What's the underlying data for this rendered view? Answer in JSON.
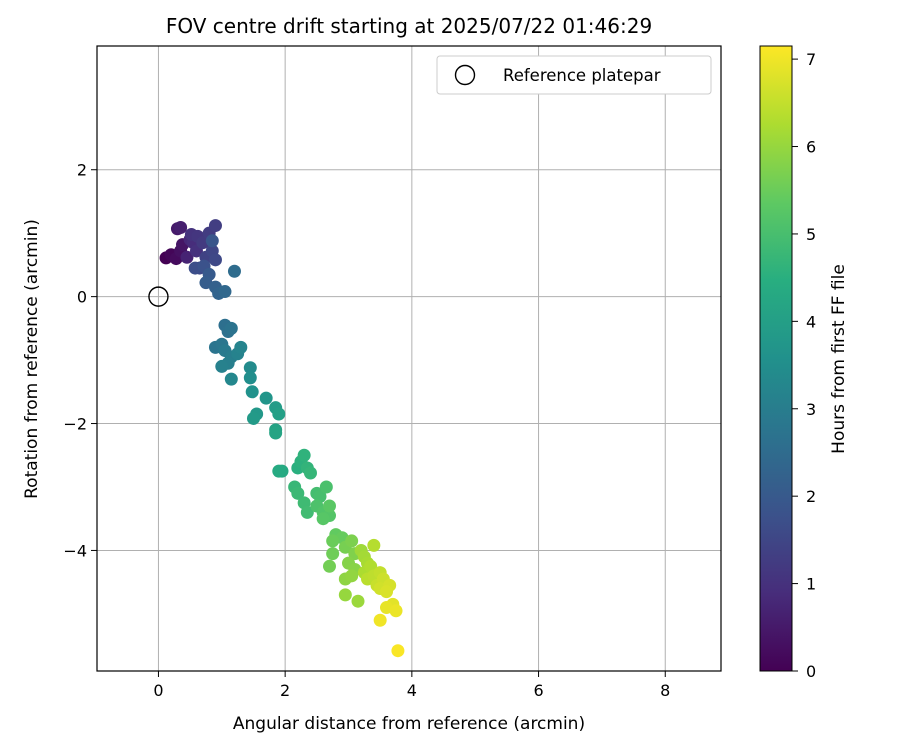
{
  "chart_data": {
    "type": "scatter",
    "title": "FOV centre drift starting at 2025/07/22 01:46:29",
    "xlabel": "Angular distance from reference (arcmin)",
    "ylabel": "Rotation from reference (arcmin)",
    "xlim": [
      -0.97,
      8.88
    ],
    "ylim": [
      -5.9,
      3.95
    ],
    "xticks": [
      0,
      2,
      4,
      6,
      8
    ],
    "yticks": [
      2,
      0,
      -2,
      -4
    ],
    "grid": true,
    "legend": {
      "placement": "top-right",
      "entries": [
        "Reference platepar"
      ]
    },
    "reference_point": {
      "x": 0,
      "y": 0
    },
    "colorbar": {
      "label": "Hours from first FF file",
      "colormap": "viridis",
      "range": [
        0,
        7.15
      ],
      "ticks": [
        0,
        1,
        2,
        3,
        4,
        5,
        6,
        7
      ]
    },
    "series": [
      {
        "points": [
          {
            "x": 0.12,
            "y": 0.61,
            "t": 0.0
          },
          {
            "x": 0.2,
            "y": 0.66,
            "t": 0.1
          },
          {
            "x": 0.28,
            "y": 0.6,
            "t": 0.2
          },
          {
            "x": 0.35,
            "y": 0.72,
            "t": 0.3
          },
          {
            "x": 0.38,
            "y": 0.82,
            "t": 0.4
          },
          {
            "x": 0.3,
            "y": 1.07,
            "t": 0.5
          },
          {
            "x": 0.35,
            "y": 1.09,
            "t": 0.6
          },
          {
            "x": 0.45,
            "y": 0.62,
            "t": 0.7
          },
          {
            "x": 0.5,
            "y": 0.9,
            "t": 0.8
          },
          {
            "x": 0.55,
            "y": 0.85,
            "t": 0.9
          },
          {
            "x": 0.6,
            "y": 0.72,
            "t": 1.0
          },
          {
            "x": 0.52,
            "y": 0.98,
            "t": 1.05
          },
          {
            "x": 0.62,
            "y": 0.95,
            "t": 1.1
          },
          {
            "x": 0.7,
            "y": 0.85,
            "t": 1.2
          },
          {
            "x": 0.8,
            "y": 1.0,
            "t": 1.25
          },
          {
            "x": 0.9,
            "y": 1.12,
            "t": 1.3
          },
          {
            "x": 0.75,
            "y": 0.62,
            "t": 1.4
          },
          {
            "x": 0.85,
            "y": 0.72,
            "t": 1.5
          },
          {
            "x": 0.9,
            "y": 0.58,
            "t": 1.55
          },
          {
            "x": 0.65,
            "y": 0.45,
            "t": 1.6
          },
          {
            "x": 0.58,
            "y": 0.45,
            "t": 1.7
          },
          {
            "x": 0.72,
            "y": 0.48,
            "t": 1.8
          },
          {
            "x": 0.85,
            "y": 0.88,
            "t": 1.9
          },
          {
            "x": 0.8,
            "y": 0.35,
            "t": 2.0
          },
          {
            "x": 0.75,
            "y": 0.22,
            "t": 2.1
          },
          {
            "x": 0.9,
            "y": 0.15,
            "t": 2.2
          },
          {
            "x": 0.95,
            "y": 0.05,
            "t": 2.3
          },
          {
            "x": 1.05,
            "y": 0.08,
            "t": 2.4
          },
          {
            "x": 1.2,
            "y": 0.4,
            "t": 2.5
          },
          {
            "x": 1.05,
            "y": -0.45,
            "t": 2.6
          },
          {
            "x": 1.1,
            "y": -0.55,
            "t": 2.65
          },
          {
            "x": 1.15,
            "y": -0.5,
            "t": 2.7
          },
          {
            "x": 0.9,
            "y": -0.8,
            "t": 2.75
          },
          {
            "x": 1.0,
            "y": -0.75,
            "t": 2.8
          },
          {
            "x": 1.05,
            "y": -0.85,
            "t": 2.9
          },
          {
            "x": 1.15,
            "y": -0.95,
            "t": 3.0
          },
          {
            "x": 1.1,
            "y": -1.05,
            "t": 3.05
          },
          {
            "x": 1.0,
            "y": -1.1,
            "t": 3.1
          },
          {
            "x": 1.25,
            "y": -0.9,
            "t": 3.15
          },
          {
            "x": 1.3,
            "y": -0.8,
            "t": 3.2
          },
          {
            "x": 1.15,
            "y": -1.3,
            "t": 3.3
          },
          {
            "x": 1.45,
            "y": -1.12,
            "t": 3.4
          },
          {
            "x": 1.45,
            "y": -1.28,
            "t": 3.5
          },
          {
            "x": 1.48,
            "y": -1.5,
            "t": 3.6
          },
          {
            "x": 1.7,
            "y": -1.6,
            "t": 3.7
          },
          {
            "x": 1.55,
            "y": -1.85,
            "t": 3.8
          },
          {
            "x": 1.5,
            "y": -1.92,
            "t": 3.85
          },
          {
            "x": 1.85,
            "y": -1.75,
            "t": 3.9
          },
          {
            "x": 1.9,
            "y": -1.85,
            "t": 4.0
          },
          {
            "x": 1.85,
            "y": -2.1,
            "t": 4.1
          },
          {
            "x": 1.85,
            "y": -2.15,
            "t": 4.15
          },
          {
            "x": 1.95,
            "y": -2.75,
            "t": 4.3
          },
          {
            "x": 1.9,
            "y": -2.75,
            "t": 4.35
          },
          {
            "x": 2.2,
            "y": -2.7,
            "t": 4.5
          },
          {
            "x": 2.25,
            "y": -2.6,
            "t": 4.55
          },
          {
            "x": 2.3,
            "y": -2.5,
            "t": 4.6
          },
          {
            "x": 2.35,
            "y": -2.7,
            "t": 4.65
          },
          {
            "x": 2.4,
            "y": -2.78,
            "t": 4.7
          },
          {
            "x": 2.15,
            "y": -3.0,
            "t": 4.75
          },
          {
            "x": 2.2,
            "y": -3.1,
            "t": 4.8
          },
          {
            "x": 2.3,
            "y": -3.25,
            "t": 4.85
          },
          {
            "x": 2.35,
            "y": -3.4,
            "t": 4.9
          },
          {
            "x": 2.5,
            "y": -3.1,
            "t": 4.95
          },
          {
            "x": 2.55,
            "y": -3.15,
            "t": 5.0
          },
          {
            "x": 2.65,
            "y": -3.0,
            "t": 5.05
          },
          {
            "x": 2.5,
            "y": -3.3,
            "t": 5.1
          },
          {
            "x": 2.6,
            "y": -3.4,
            "t": 5.15
          },
          {
            "x": 2.7,
            "y": -3.45,
            "t": 5.2
          },
          {
            "x": 2.6,
            "y": -3.5,
            "t": 5.25
          },
          {
            "x": 2.7,
            "y": -3.3,
            "t": 5.3
          },
          {
            "x": 2.8,
            "y": -3.75,
            "t": 5.4
          },
          {
            "x": 2.9,
            "y": -3.8,
            "t": 5.45
          },
          {
            "x": 2.75,
            "y": -3.85,
            "t": 5.5
          },
          {
            "x": 2.75,
            "y": -4.05,
            "t": 5.55
          },
          {
            "x": 2.7,
            "y": -4.25,
            "t": 5.6
          },
          {
            "x": 2.95,
            "y": -3.95,
            "t": 5.65
          },
          {
            "x": 3.05,
            "y": -3.85,
            "t": 5.7
          },
          {
            "x": 3.1,
            "y": -4.05,
            "t": 5.75
          },
          {
            "x": 3.0,
            "y": -4.2,
            "t": 5.8
          },
          {
            "x": 3.1,
            "y": -4.3,
            "t": 5.85
          },
          {
            "x": 2.95,
            "y": -4.45,
            "t": 5.9
          },
          {
            "x": 3.05,
            "y": -4.4,
            "t": 5.95
          },
          {
            "x": 2.95,
            "y": -4.7,
            "t": 6.0
          },
          {
            "x": 3.15,
            "y": -4.8,
            "t": 6.05
          },
          {
            "x": 3.2,
            "y": -4.0,
            "t": 6.1
          },
          {
            "x": 3.25,
            "y": -4.1,
            "t": 6.15
          },
          {
            "x": 3.3,
            "y": -4.2,
            "t": 6.2
          },
          {
            "x": 3.25,
            "y": -4.35,
            "t": 6.25
          },
          {
            "x": 3.35,
            "y": -4.25,
            "t": 6.3
          },
          {
            "x": 3.4,
            "y": -3.92,
            "t": 6.35
          },
          {
            "x": 3.3,
            "y": -4.45,
            "t": 6.4
          },
          {
            "x": 3.4,
            "y": -4.4,
            "t": 6.45
          },
          {
            "x": 3.5,
            "y": -4.35,
            "t": 6.5
          },
          {
            "x": 3.45,
            "y": -4.55,
            "t": 6.55
          },
          {
            "x": 3.55,
            "y": -4.45,
            "t": 6.6
          },
          {
            "x": 3.5,
            "y": -4.6,
            "t": 6.65
          },
          {
            "x": 3.65,
            "y": -4.55,
            "t": 6.7
          },
          {
            "x": 3.6,
            "y": -4.65,
            "t": 6.75
          },
          {
            "x": 3.7,
            "y": -4.85,
            "t": 6.85
          },
          {
            "x": 3.6,
            "y": -4.9,
            "t": 6.9
          },
          {
            "x": 3.75,
            "y": -4.95,
            "t": 6.95
          },
          {
            "x": 3.5,
            "y": -5.1,
            "t": 7.0
          },
          {
            "x": 3.78,
            "y": -5.58,
            "t": 7.1
          }
        ]
      }
    ]
  }
}
